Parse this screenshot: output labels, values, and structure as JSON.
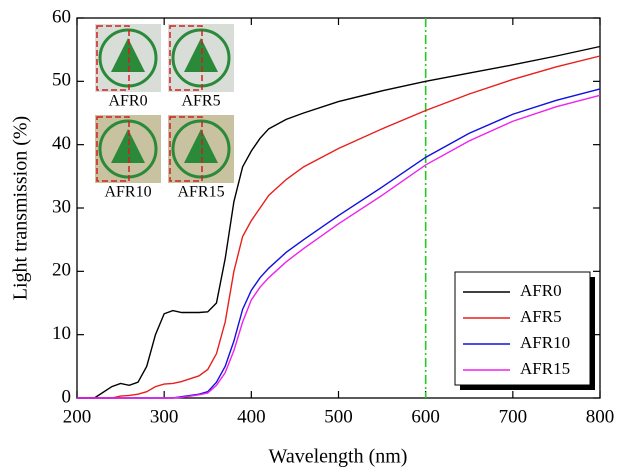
{
  "chart_data": {
    "type": "line",
    "x_label": "Wavelength (nm)",
    "y_label": "Light transmission (%)",
    "x": [
      200,
      220,
      240,
      250,
      260,
      270,
      280,
      290,
      300,
      310,
      320,
      340,
      350,
      360,
      370,
      380,
      390,
      400,
      410,
      420,
      440,
      460,
      500,
      550,
      600,
      650,
      700,
      750,
      800
    ],
    "series": [
      {
        "name": "AFR0",
        "color": "#000000",
        "values": [
          0,
          0,
          1.8,
          2.3,
          2,
          2.5,
          5,
          10,
          13.3,
          13.8,
          13.5,
          13.5,
          13.6,
          15,
          22,
          31,
          36.5,
          39,
          41,
          42.5,
          44,
          45,
          46.8,
          48.5,
          50,
          51.3,
          52.6,
          54,
          55.5
        ]
      },
      {
        "name": "AFR5",
        "color": "#e8201c",
        "values": [
          0,
          0,
          0,
          0.3,
          0.4,
          0.6,
          1,
          1.8,
          2.2,
          2.3,
          2.6,
          3.5,
          4.5,
          7,
          12,
          20,
          25.5,
          28,
          30,
          32,
          34.5,
          36.5,
          39.4,
          42.5,
          45.4,
          48,
          50.3,
          52.3,
          54
        ]
      },
      {
        "name": "AFR10",
        "color": "#1010e0",
        "values": [
          0,
          0,
          0,
          0,
          0,
          0,
          0,
          0,
          0,
          0,
          0.2,
          0.6,
          1,
          2.5,
          5,
          9,
          14,
          17,
          19,
          20.5,
          23,
          25,
          28.8,
          33.3,
          38,
          41.8,
          44.8,
          47,
          48.8
        ]
      },
      {
        "name": "AFR15",
        "color": "#ee22ee",
        "values": [
          0,
          0,
          0,
          0,
          0,
          0,
          0,
          0,
          0,
          0,
          0.1,
          0.5,
          0.8,
          2,
          4,
          7.5,
          12,
          15.5,
          17.5,
          19,
          21.5,
          23.6,
          27.5,
          32,
          36.8,
          40.6,
          43.7,
          46,
          47.8
        ]
      }
    ],
    "xlim": [
      200,
      800
    ],
    "xticks": [
      200,
      300,
      400,
      500,
      600,
      700,
      800
    ],
    "ylim": [
      0,
      60
    ],
    "yticks": [
      0,
      10,
      20,
      30,
      40,
      50,
      60
    ],
    "vline": {
      "x": 600,
      "color": "#22cc22"
    },
    "legend": "lower right",
    "insets": [
      {
        "label": "AFR0"
      },
      {
        "label": "AFR5"
      },
      {
        "label": "AFR10"
      },
      {
        "label": "AFR15"
      }
    ]
  }
}
